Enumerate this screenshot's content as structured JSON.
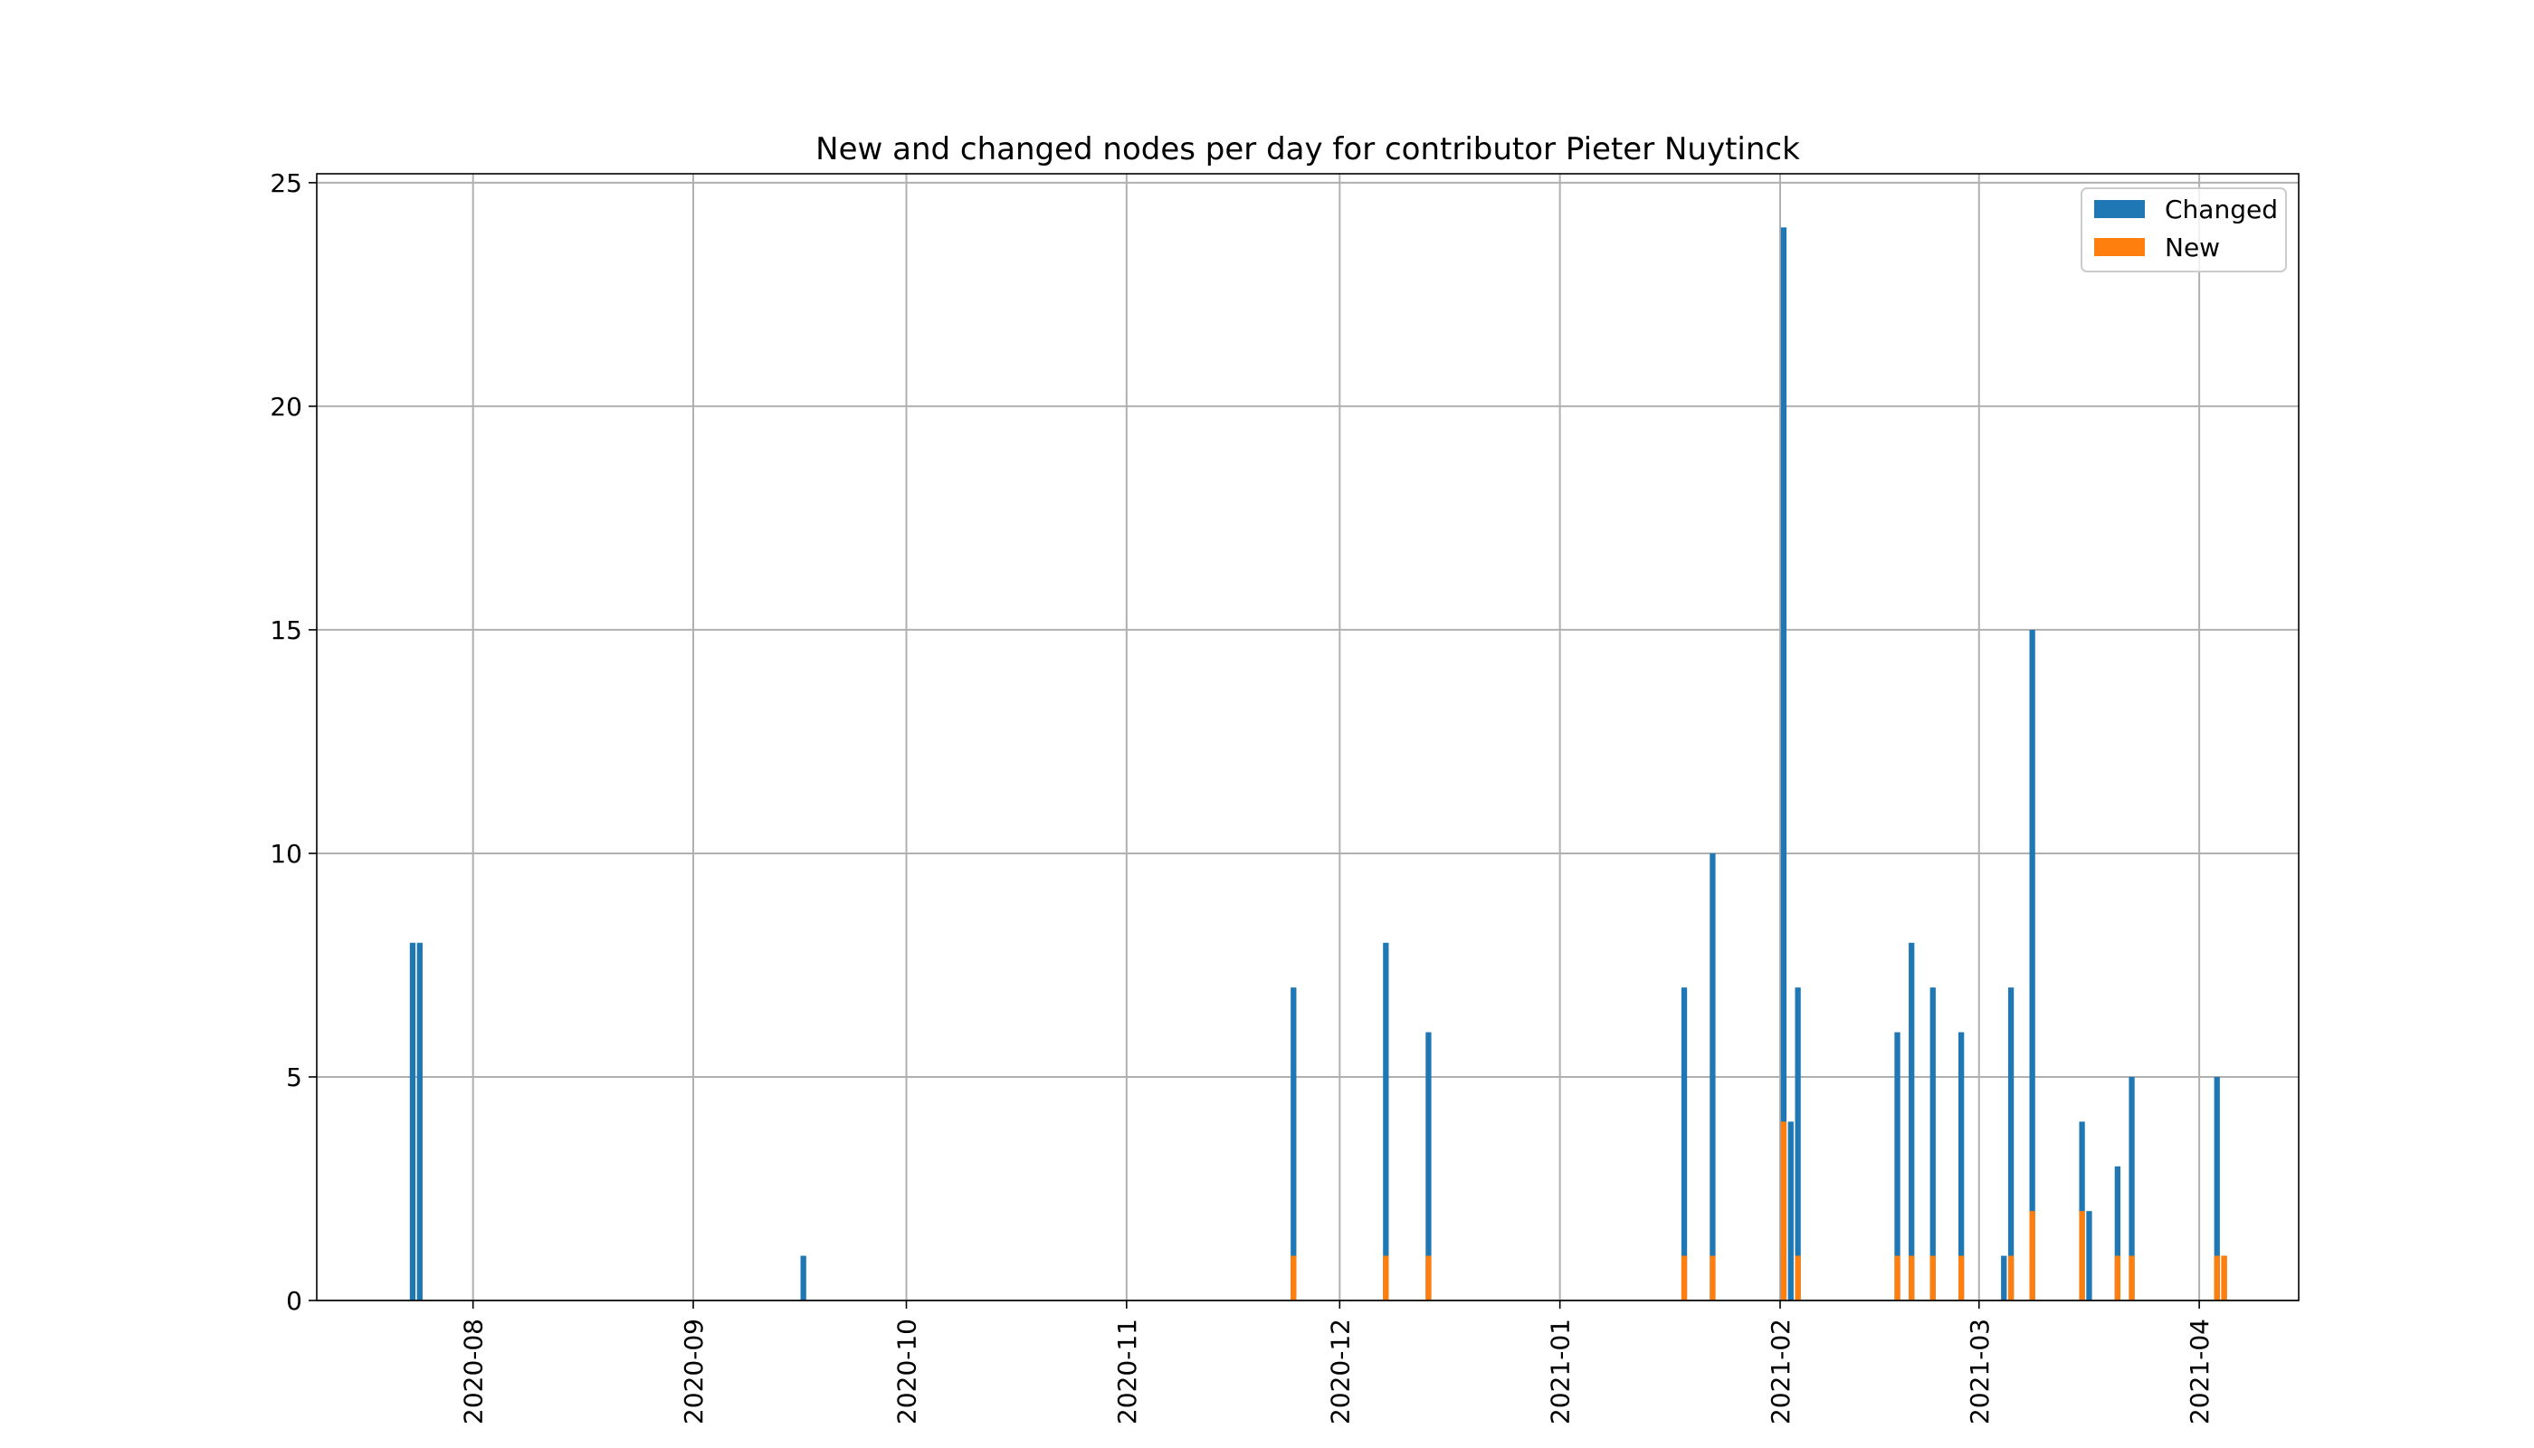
{
  "chart_data": {
    "type": "bar",
    "stacked": true,
    "title": "New and changed nodes per day for contributor Pieter Nuytinck",
    "xlabel": "",
    "ylabel": "",
    "x_type": "date",
    "xlim": [
      "2020-07-10",
      "2021-04-15"
    ],
    "ylim": [
      0,
      25.2
    ],
    "x_ticks": [
      "2020-08",
      "2020-09",
      "2020-10",
      "2020-11",
      "2020-12",
      "2021-01",
      "2021-02",
      "2021-03",
      "2021-04"
    ],
    "y_ticks": [
      "0",
      "5",
      "10",
      "15",
      "20",
      "25"
    ],
    "grid": true,
    "legend_position": "top-right",
    "series": [
      {
        "name": "Changed",
        "color": "#1f77b4",
        "values": [
          {
            "date": "2020-07-23",
            "value": 8
          },
          {
            "date": "2020-07-24",
            "value": 8
          },
          {
            "date": "2020-09-16",
            "value": 1
          },
          {
            "date": "2020-11-24",
            "value": 7
          },
          {
            "date": "2020-12-07",
            "value": 8
          },
          {
            "date": "2020-12-13",
            "value": 6
          },
          {
            "date": "2021-01-18",
            "value": 7
          },
          {
            "date": "2021-01-22",
            "value": 10
          },
          {
            "date": "2021-02-01",
            "value": 24
          },
          {
            "date": "2021-02-02",
            "value": 4
          },
          {
            "date": "2021-02-03",
            "value": 7
          },
          {
            "date": "2021-02-17",
            "value": 6
          },
          {
            "date": "2021-02-19",
            "value": 8
          },
          {
            "date": "2021-02-22",
            "value": 7
          },
          {
            "date": "2021-02-26",
            "value": 6
          },
          {
            "date": "2021-03-04",
            "value": 1
          },
          {
            "date": "2021-03-05",
            "value": 7
          },
          {
            "date": "2021-03-08",
            "value": 15
          },
          {
            "date": "2021-03-15",
            "value": 4
          },
          {
            "date": "2021-03-16",
            "value": 2
          },
          {
            "date": "2021-03-20",
            "value": 3
          },
          {
            "date": "2021-03-22",
            "value": 5
          },
          {
            "date": "2021-04-03",
            "value": 5
          },
          {
            "date": "2021-04-04",
            "value": 1
          }
        ]
      },
      {
        "name": "New",
        "color": "#ff7f0e",
        "values": [
          {
            "date": "2020-11-24",
            "value": 1
          },
          {
            "date": "2020-12-07",
            "value": 1
          },
          {
            "date": "2020-12-13",
            "value": 1
          },
          {
            "date": "2021-01-18",
            "value": 1
          },
          {
            "date": "2021-01-22",
            "value": 1
          },
          {
            "date": "2021-02-01",
            "value": 4
          },
          {
            "date": "2021-02-03",
            "value": 1
          },
          {
            "date": "2021-02-17",
            "value": 1
          },
          {
            "date": "2021-02-19",
            "value": 1
          },
          {
            "date": "2021-02-22",
            "value": 1
          },
          {
            "date": "2021-02-26",
            "value": 1
          },
          {
            "date": "2021-03-05",
            "value": 1
          },
          {
            "date": "2021-03-08",
            "value": 2
          },
          {
            "date": "2021-03-15",
            "value": 2
          },
          {
            "date": "2021-03-20",
            "value": 1
          },
          {
            "date": "2021-03-22",
            "value": 1
          },
          {
            "date": "2021-04-03",
            "value": 1
          },
          {
            "date": "2021-04-04",
            "value": 1
          }
        ]
      }
    ]
  }
}
